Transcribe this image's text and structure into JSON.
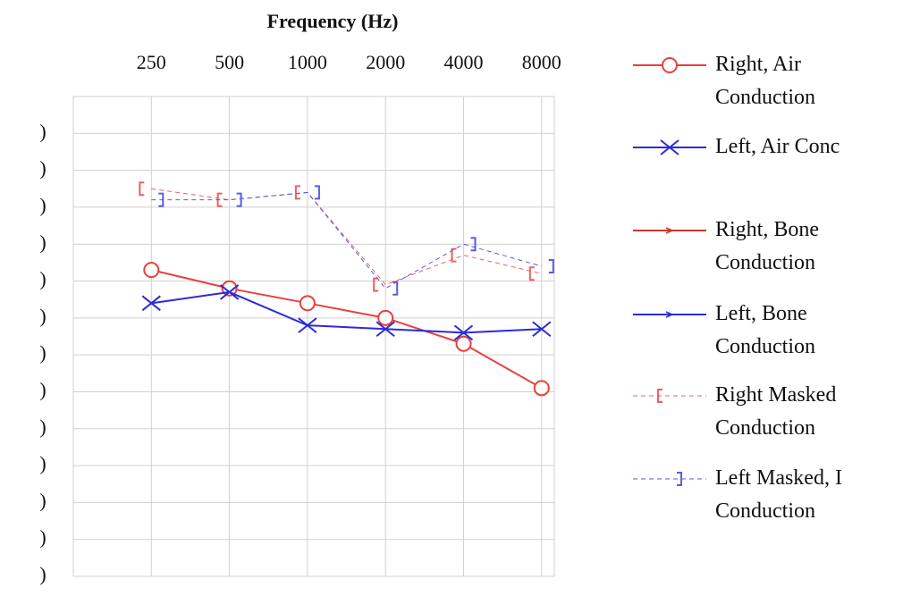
{
  "chart_data": {
    "type": "line",
    "title": "Frequency  (Hz)",
    "categories": [
      "250",
      "500",
      "1000",
      "2000",
      "4000",
      "8000"
    ],
    "ylim": [
      -10,
      120
    ],
    "y_reversed": true,
    "yticks": [
      {
        "value": 0,
        "label": ")"
      },
      {
        "value": 10,
        "label": ")"
      },
      {
        "value": 20,
        "label": ")"
      },
      {
        "value": 30,
        "label": ")"
      },
      {
        "value": 40,
        "label": ")"
      },
      {
        "value": 50,
        "label": ")"
      },
      {
        "value": 60,
        "label": ")"
      },
      {
        "value": 70,
        "label": ")"
      },
      {
        "value": 80,
        "label": ")"
      },
      {
        "value": 90,
        "label": ")"
      },
      {
        "value": 100,
        "label": ")"
      },
      {
        "value": 110,
        "label": ")"
      },
      {
        "value": 120,
        "label": ")"
      }
    ],
    "grid": true,
    "series": [
      {
        "name": "Right, Air\nConduction",
        "color": "#e8413c",
        "marker": "circle",
        "dash": false,
        "values": [
          37,
          42,
          46,
          50,
          57,
          69
        ]
      },
      {
        "name": "Left, Air Conc",
        "color": "#2b2bd9",
        "marker": "x",
        "dash": false,
        "values": [
          46,
          43,
          52,
          53,
          54,
          53
        ]
      },
      {
        "name": "Right, Bone\nConduction",
        "color": "#c0392b",
        "marker": "arrow",
        "dash": false,
        "values": [
          null,
          null,
          null,
          null,
          null,
          null
        ]
      },
      {
        "name": "Left, Bone\nConduction",
        "color": "#2b2bd9",
        "marker": "arrow",
        "dash": false,
        "values": [
          null,
          null,
          null,
          null,
          null,
          null
        ]
      },
      {
        "name": "Right Masked\nConduction",
        "color": "#ee6060",
        "marker": "bracket-left",
        "dash": true,
        "values": [
          15,
          18,
          16,
          41,
          33,
          38
        ]
      },
      {
        "name": "Left Masked, I\nConduction",
        "color": "#5a5ae8",
        "marker": "bracket-right",
        "dash": true,
        "values": [
          18,
          18,
          16,
          42,
          30,
          36
        ]
      }
    ]
  }
}
